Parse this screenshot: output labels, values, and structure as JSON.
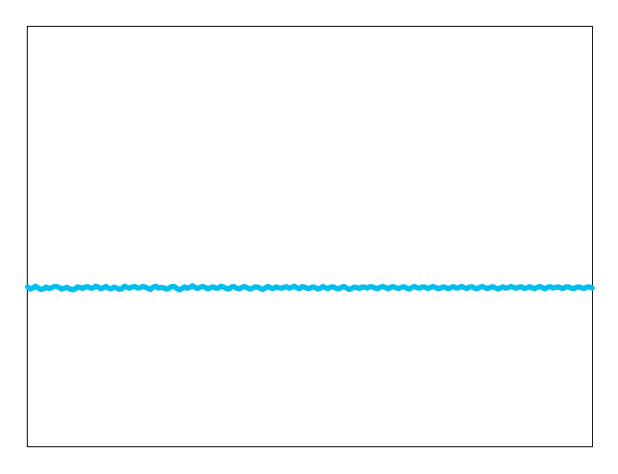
{
  "chart_data": {
    "type": "line",
    "title": "",
    "xlabel": "",
    "ylabel": "",
    "grid": false,
    "legend": "none",
    "xlim": [
      0,
      1
    ],
    "ylim": [
      -1,
      1
    ],
    "series": [
      {
        "color": "#00bfef",
        "values": [
          -0.24,
          -0.25,
          -0.245,
          -0.237,
          -0.245,
          -0.252,
          -0.249,
          -0.241,
          -0.247,
          -0.245,
          -0.239,
          -0.238,
          -0.243,
          -0.25,
          -0.246,
          -0.242,
          -0.249,
          -0.253,
          -0.251,
          -0.24,
          -0.243,
          -0.247,
          -0.241,
          -0.239,
          -0.246,
          -0.245,
          -0.237,
          -0.241,
          -0.248,
          -0.244,
          -0.238,
          -0.247,
          -0.249,
          -0.241,
          -0.245,
          -0.251,
          -0.249,
          -0.237,
          -0.242,
          -0.246,
          -0.24,
          -0.238,
          -0.245,
          -0.244,
          -0.238,
          -0.241,
          -0.247,
          -0.252,
          -0.241,
          -0.237,
          -0.245,
          -0.243,
          -0.244,
          -0.25,
          -0.247,
          -0.239,
          -0.238,
          -0.247,
          -0.254,
          -0.248,
          -0.24,
          -0.246,
          -0.243,
          -0.235,
          -0.242,
          -0.247,
          -0.242,
          -0.238,
          -0.243,
          -0.249,
          -0.244,
          -0.24,
          -0.246,
          -0.245,
          -0.237,
          -0.241,
          -0.248,
          -0.25,
          -0.24,
          -0.239,
          -0.247,
          -0.249,
          -0.242,
          -0.238,
          -0.245,
          -0.25,
          -0.246,
          -0.24,
          -0.241,
          -0.247,
          -0.252,
          -0.244,
          -0.238,
          -0.245,
          -0.248,
          -0.24,
          -0.244,
          -0.246,
          -0.243,
          -0.239,
          -0.246,
          -0.243,
          -0.237,
          -0.244,
          -0.248,
          -0.239,
          -0.241,
          -0.248,
          -0.246,
          -0.24,
          -0.243,
          -0.25,
          -0.246,
          -0.238,
          -0.245,
          -0.247,
          -0.241,
          -0.24,
          -0.246,
          -0.249,
          -0.243,
          -0.238,
          -0.245,
          -0.252,
          -0.247,
          -0.241,
          -0.244,
          -0.247,
          -0.24,
          -0.242,
          -0.245,
          -0.239,
          -0.24,
          -0.246,
          -0.248,
          -0.241,
          -0.238,
          -0.244,
          -0.249,
          -0.241,
          -0.239,
          -0.245,
          -0.247,
          -0.242,
          -0.239,
          -0.246,
          -0.25,
          -0.243,
          -0.238,
          -0.244,
          -0.246,
          -0.24,
          -0.241,
          -0.247,
          -0.244,
          -0.238,
          -0.242,
          -0.248,
          -0.246,
          -0.24,
          -0.243,
          -0.249,
          -0.243,
          -0.239,
          -0.245,
          -0.244,
          -0.238,
          -0.243,
          -0.248,
          -0.241,
          -0.239,
          -0.246,
          -0.249,
          -0.242,
          -0.238,
          -0.244,
          -0.247,
          -0.243,
          -0.239,
          -0.245,
          -0.25,
          -0.244,
          -0.24,
          -0.246,
          -0.243,
          -0.238,
          -0.243,
          -0.246,
          -0.241,
          -0.24,
          -0.247,
          -0.245,
          -0.239,
          -0.244,
          -0.248,
          -0.242,
          -0.238,
          -0.244,
          -0.249,
          -0.242,
          -0.239,
          -0.245,
          -0.243,
          -0.24,
          -0.245,
          -0.247,
          -0.24,
          -0.24,
          -0.246,
          -0.248,
          -0.242,
          -0.24,
          -0.245,
          -0.247,
          -0.241,
          -0.24,
          -0.245
        ]
      }
    ]
  }
}
